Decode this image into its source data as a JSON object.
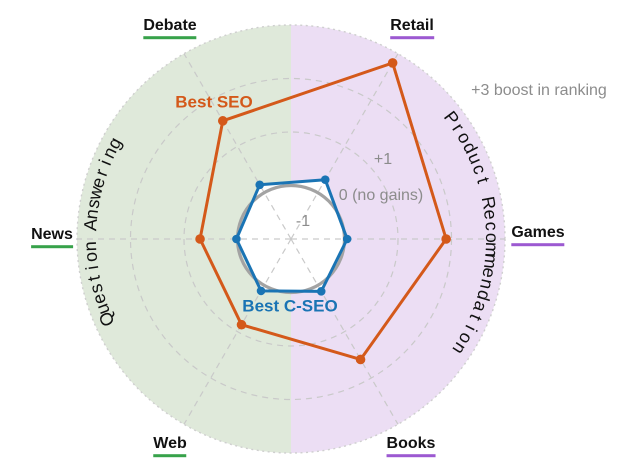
{
  "colors": {
    "best_seo_orange": "#d4591a",
    "best_cseo_blue": "#1a74b4",
    "qa_region_green": "#dfe9da",
    "pr_region_purple": "#ecdef4",
    "qa_underline_green": "#37a24a",
    "pr_underline_purple": "#9c59d1",
    "grid_gray": "#c9c9c9",
    "zero_ring_gray": "#a3a3a3",
    "annotation_gray": "#8c8c8c",
    "axis_label_black": "#111111"
  },
  "chart_data": {
    "type": "radar",
    "title": "",
    "axes": [
      {
        "label": "Games",
        "angle_deg": 0,
        "group": "Product Recommendation"
      },
      {
        "label": "Retail",
        "angle_deg": 60,
        "group": "Product Recommendation"
      },
      {
        "label": "Debate",
        "angle_deg": 120,
        "group": "Question Answering"
      },
      {
        "label": "News",
        "angle_deg": 180,
        "group": "Question Answering"
      },
      {
        "label": "Web",
        "angle_deg": 240,
        "group": "Question Answering"
      },
      {
        "label": "Books",
        "angle_deg": 300,
        "group": "Product Recommendation"
      }
    ],
    "scale": {
      "center_value": -1,
      "outer_value": 3,
      "dashed_ring_values": [
        1,
        2
      ],
      "zero_ring_value": 0,
      "ring_label_texts": [
        "-1",
        "0 (no gains)",
        "+1",
        "+3 boost in ranking"
      ]
    },
    "series": [
      {
        "name": "Best SEO",
        "color_key": "best_seo_orange",
        "values": [
          1.9,
          2.8,
          1.55,
          0.7,
          0.85,
          1.6
        ]
      },
      {
        "name": "Best C-SEO",
        "color_key": "best_cseo_blue",
        "values": [
          0.05,
          0.28,
          0.17,
          0.02,
          0.12,
          0.13
        ]
      }
    ],
    "region_arc_texts": [
      {
        "text": "Question Answering",
        "side": "left"
      },
      {
        "text": "Product Recommendation",
        "side": "right"
      }
    ],
    "legend_position": "on-chart",
    "grid": true
  },
  "annotations": {
    "ring_center": "-1",
    "ring_zero": "0 (no gains)",
    "ring_plus1": "+1",
    "outer_note": "+3 boost in ranking"
  }
}
